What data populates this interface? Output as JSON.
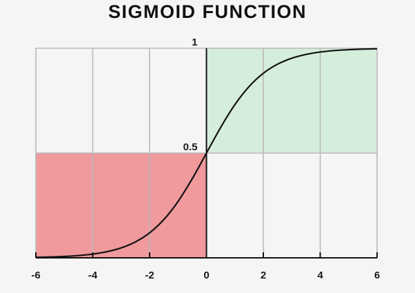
{
  "chart_data": {
    "type": "line",
    "title": "SIGMOID FUNCTION",
    "xlabel": "",
    "ylabel": "",
    "xlim": [
      -6,
      6
    ],
    "ylim": [
      0,
      1
    ],
    "xticks": [
      -6,
      -4,
      -2,
      0,
      2,
      4,
      6
    ],
    "xtick_labels": [
      "-6",
      "-4",
      "-2",
      "0",
      "2",
      "4",
      "6"
    ],
    "yticks": [
      0.5,
      1
    ],
    "ytick_labels": [
      "0.5",
      "1"
    ],
    "grid": true,
    "series": [
      {
        "x": [
          -6,
          -5.5,
          -5,
          -4.5,
          -4,
          -3.5,
          -3,
          -2.5,
          -2,
          -1.5,
          -1,
          -0.5,
          0,
          0.5,
          1,
          1.5,
          2,
          2.5,
          3,
          3.5,
          4,
          4.5,
          5,
          5.5,
          6
        ],
        "y": [
          0.0025,
          0.0041,
          0.0067,
          0.011,
          0.018,
          0.0293,
          0.0474,
          0.0759,
          0.1192,
          0.1824,
          0.2689,
          0.3775,
          0.5,
          0.6225,
          0.7311,
          0.8176,
          0.8808,
          0.9241,
          0.9526,
          0.9707,
          0.982,
          0.989,
          0.9933,
          0.9959,
          0.9975
        ],
        "color": "#111111"
      }
    ],
    "regions": [
      {
        "x_range": [
          -6,
          0
        ],
        "y_range": [
          0,
          0.5
        ],
        "color": "#f09a9e"
      },
      {
        "x_range": [
          0,
          6
        ],
        "y_range": [
          0.5,
          1
        ],
        "color": "#d5eedb"
      }
    ]
  }
}
